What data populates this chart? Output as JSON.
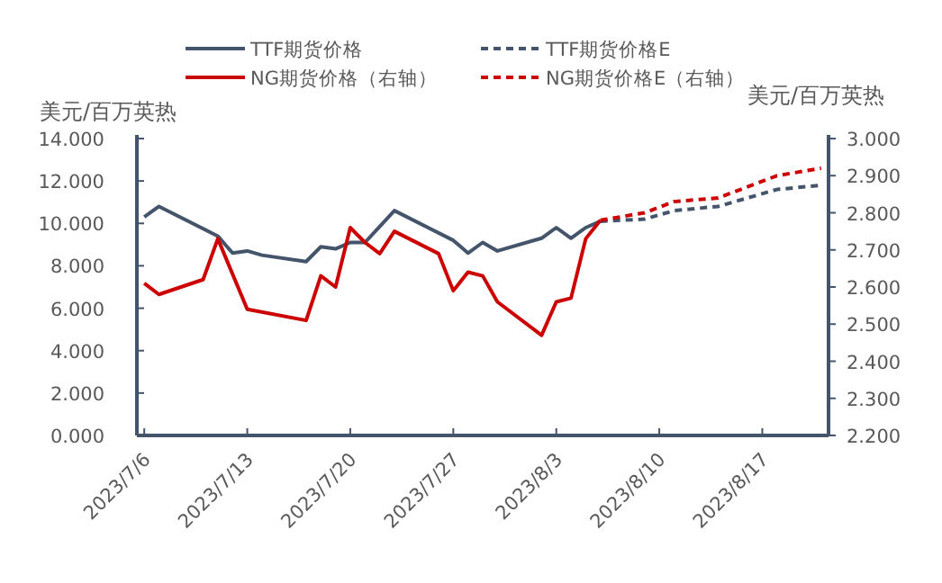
{
  "chart_data": {
    "type": "line",
    "ylabel": "美元/百万英热",
    "y2label": "美元/百万英热",
    "legend": "top",
    "xlim": [
      "2023-07-05T12:00",
      "2023-08-21T12:00"
    ],
    "xticks": [
      {
        "value": "2023-07-06",
        "label": "2023/7/6"
      },
      {
        "value": "2023-07-13",
        "label": "2023/7/13"
      },
      {
        "value": "2023-07-20",
        "label": "2023/7/20"
      },
      {
        "value": "2023-07-27",
        "label": "2023/7/27"
      },
      {
        "value": "2023-08-03",
        "label": "2023/8/3"
      },
      {
        "value": "2023-08-10",
        "label": "2023/8/10"
      },
      {
        "value": "2023-08-17",
        "label": "2023/8/17"
      }
    ],
    "ylim": [
      0,
      14
    ],
    "yticks": [
      {
        "value": 0,
        "label": "0.000"
      },
      {
        "value": 2,
        "label": "2.000"
      },
      {
        "value": 4,
        "label": "4.000"
      },
      {
        "value": 6,
        "label": "6.000"
      },
      {
        "value": 8,
        "label": "8.000"
      },
      {
        "value": 10,
        "label": "10.000"
      },
      {
        "value": 12,
        "label": "12.000"
      },
      {
        "value": 14,
        "label": "14.000"
      }
    ],
    "y2lim": [
      2.2,
      3.0
    ],
    "y2ticks": [
      {
        "value": 2.2,
        "label": "2.200"
      },
      {
        "value": 2.3,
        "label": "2.300"
      },
      {
        "value": 2.4,
        "label": "2.400"
      },
      {
        "value": 2.5,
        "label": "2.500"
      },
      {
        "value": 2.6,
        "label": "2.600"
      },
      {
        "value": 2.7,
        "label": "2.700"
      },
      {
        "value": 2.8,
        "label": "2.800"
      },
      {
        "value": 2.9,
        "label": "2.900"
      },
      {
        "value": 3.0,
        "label": "3.000"
      }
    ],
    "series": [
      {
        "name": "TTF期货价格",
        "color": "#44546a",
        "line_style": "solid",
        "x": [
          "2023-07-06",
          "2023-07-07",
          "2023-07-11",
          "2023-07-12",
          "2023-07-13",
          "2023-07-14",
          "2023-07-17",
          "2023-07-18",
          "2023-07-19",
          "2023-07-20",
          "2023-07-21",
          "2023-07-23",
          "2023-07-27",
          "2023-07-28",
          "2023-07-29",
          "2023-07-30",
          "2023-08-02",
          "2023-08-03",
          "2023-08-04",
          "2023-08-05",
          "2023-08-06"
        ],
        "values": [
          10.3,
          10.8,
          9.4,
          8.6,
          8.7,
          8.5,
          8.2,
          8.9,
          8.8,
          9.1,
          9.1,
          10.6,
          9.2,
          8.6,
          9.1,
          8.7,
          9.3,
          9.8,
          9.3,
          9.8,
          10.1
        ]
      },
      {
        "name": "NG期货价格（右轴）",
        "color": "#cc0000",
        "line_style": "solid",
        "axis": "y2",
        "x": [
          "2023-07-06",
          "2023-07-07",
          "2023-07-10",
          "2023-07-11",
          "2023-07-13",
          "2023-07-17",
          "2023-07-18",
          "2023-07-19",
          "2023-07-20",
          "2023-07-21",
          "2023-07-22",
          "2023-07-23",
          "2023-07-26",
          "2023-07-27",
          "2023-07-28",
          "2023-07-29",
          "2023-07-30",
          "2023-08-02",
          "2023-08-03",
          "2023-08-04",
          "2023-08-05",
          "2023-08-06"
        ],
        "values": [
          2.61,
          2.58,
          2.62,
          2.73,
          2.54,
          2.51,
          2.63,
          2.6,
          2.76,
          2.72,
          2.69,
          2.75,
          2.69,
          2.59,
          2.64,
          2.63,
          2.56,
          2.47,
          2.56,
          2.57,
          2.73,
          2.78
        ]
      },
      {
        "name": "TTF期货价格E",
        "color": "#44546a",
        "line_style": "dashed",
        "x": [
          "2023-08-06",
          "2023-08-09",
          "2023-08-11",
          "2023-08-14",
          "2023-08-18",
          "2023-08-21"
        ],
        "values": [
          10.1,
          10.2,
          10.6,
          10.8,
          11.6,
          11.8
        ]
      },
      {
        "name": "NG期货价格E（右轴）",
        "color": "#cc0000",
        "line_style": "dashed",
        "axis": "y2",
        "x": [
          "2023-08-06",
          "2023-08-09",
          "2023-08-11",
          "2023-08-14",
          "2023-08-18",
          "2023-08-21"
        ],
        "values": [
          2.78,
          2.8,
          2.83,
          2.84,
          2.9,
          2.92
        ]
      }
    ]
  }
}
